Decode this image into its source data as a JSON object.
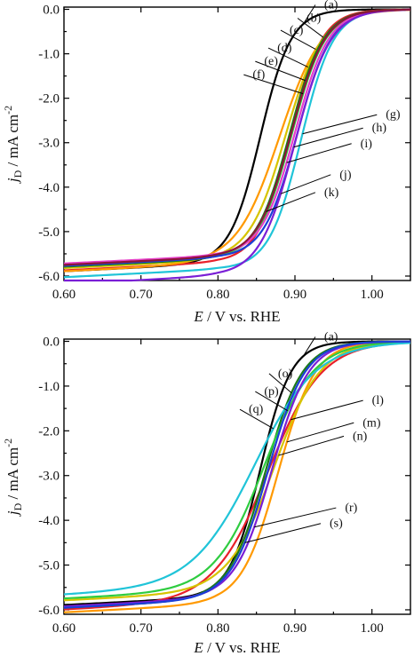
{
  "chart_data": [
    {
      "type": "line",
      "panel": "top",
      "xlabel": "E / V vs. RHE",
      "ylabel": "jD / mA cm-2",
      "xlim": [
        0.6,
        1.05
      ],
      "ylim": [
        -6.1,
        0.05
      ],
      "xticks": [
        "0.60",
        "0.70",
        "0.80",
        "0.90",
        "1.00"
      ],
      "yticks": [
        "0.0",
        "-1.0",
        "-2.0",
        "-3.0",
        "-4.0",
        "-5.0",
        "-6.0"
      ],
      "grid": false,
      "series": [
        {
          "name": "(a)",
          "color": "#000000",
          "e_half": 0.855,
          "jl": -5.72,
          "slope": 0.02
        },
        {
          "name": "(b)",
          "color": "#e8202a",
          "e_half": 0.893,
          "jl": -5.7,
          "slope": 0.021
        },
        {
          "name": "(c)",
          "color": "#ff9900",
          "e_half": 0.88,
          "jl": -5.72,
          "slope": 0.028
        },
        {
          "name": "(d)",
          "color": "#d6c400",
          "e_half": 0.888,
          "jl": -5.65,
          "slope": 0.024
        },
        {
          "name": "(e)",
          "color": "#1b7a1b",
          "e_half": 0.893,
          "jl": -5.62,
          "slope": 0.022
        },
        {
          "name": "(f)",
          "color": "#2ecc40",
          "e_half": 0.896,
          "jl": -5.6,
          "slope": 0.022
        },
        {
          "name": "(g)",
          "color": "#20c4d8",
          "e_half": 0.908,
          "jl": -5.85,
          "slope": 0.021
        },
        {
          "name": "(h)",
          "color": "#1b3fd6",
          "e_half": 0.903,
          "jl": -5.6,
          "slope": 0.022
        },
        {
          "name": "(i)",
          "color": "#e63fc8",
          "e_half": 0.9,
          "jl": -5.55,
          "slope": 0.022
        },
        {
          "name": "(j)",
          "color": "#7a1fd6",
          "e_half": 0.9,
          "jl": -6.0,
          "slope": 0.023
        },
        {
          "name": "(k)",
          "color": "#8b1538",
          "e_half": 0.895,
          "jl": -5.58,
          "slope": 0.022
        }
      ],
      "labels": [
        {
          "text": "(a)",
          "x": 0.938,
          "y": 0.02
        },
        {
          "text": "(b)",
          "x": 0.915,
          "y": -0.28
        },
        {
          "text": "(c)",
          "x": 0.893,
          "y": -0.55
        },
        {
          "text": "(d)",
          "x": 0.877,
          "y": -0.95
        },
        {
          "text": "(e)",
          "x": 0.86,
          "y": -1.25
        },
        {
          "text": "(f)",
          "x": 0.845,
          "y": -1.55
        },
        {
          "text": "(g)",
          "x": 1.018,
          "y": -2.45
        },
        {
          "text": "(h)",
          "x": 1.0,
          "y": -2.75
        },
        {
          "text": "(i)",
          "x": 0.985,
          "y": -3.1
        },
        {
          "text": "(j)",
          "x": 0.958,
          "y": -3.8
        },
        {
          "text": "(k)",
          "x": 0.938,
          "y": -4.2
        }
      ]
    },
    {
      "type": "line",
      "panel": "bottom",
      "xlabel": "E / V vs. RHE",
      "ylabel": "jD / mA cm-2",
      "xlim": [
        0.6,
        1.05
      ],
      "ylim": [
        -6.1,
        0.05
      ],
      "xticks": [
        "0.60",
        "0.70",
        "0.80",
        "0.90",
        "1.00"
      ],
      "yticks": [
        "0.0",
        "-1.0",
        "-2.0",
        "-3.0",
        "-4.0",
        "-5.0",
        "-6.0"
      ],
      "grid": false,
      "series": [
        {
          "name": "(a)",
          "color": "#000000",
          "e_half": 0.855,
          "jl": -5.72,
          "slope": 0.02
        },
        {
          "name": "(l)",
          "color": "#e8202a",
          "e_half": 0.865,
          "jl": -5.82,
          "slope": 0.035
        },
        {
          "name": "(m)",
          "color": "#ff9900",
          "e_half": 0.878,
          "jl": -5.88,
          "slope": 0.024
        },
        {
          "name": "(n)",
          "color": "#d6c400",
          "e_half": 0.873,
          "jl": -5.62,
          "slope": 0.03
        },
        {
          "name": "(o)",
          "color": "#1b7a1b",
          "e_half": 0.862,
          "jl": -5.78,
          "slope": 0.024
        },
        {
          "name": "(p)",
          "color": "#2ecc40",
          "e_half": 0.86,
          "jl": -5.58,
          "slope": 0.032
        },
        {
          "name": "(q)",
          "color": "#20c4d8",
          "e_half": 0.848,
          "jl": -5.5,
          "slope": 0.04
        },
        {
          "name": "(r)",
          "color": "#7a1fd6",
          "e_half": 0.87,
          "jl": -5.75,
          "slope": 0.024
        },
        {
          "name": "(s)",
          "color": "#1b3fd6",
          "e_half": 0.865,
          "jl": -5.78,
          "slope": 0.024
        }
      ],
      "labels": [
        {
          "text": "(a)",
          "x": 0.938,
          "y": 0.02
        },
        {
          "text": "(l)",
          "x": 1.0,
          "y": -1.4
        },
        {
          "text": "(m)",
          "x": 0.988,
          "y": -1.9
        },
        {
          "text": "(n)",
          "x": 0.975,
          "y": -2.2
        },
        {
          "text": "(o)",
          "x": 0.878,
          "y": -0.8
        },
        {
          "text": "(p)",
          "x": 0.86,
          "y": -1.2
        },
        {
          "text": "(q)",
          "x": 0.84,
          "y": -1.6
        },
        {
          "text": "(r)",
          "x": 0.965,
          "y": -3.8
        },
        {
          "text": "(s)",
          "x": 0.945,
          "y": -4.15
        }
      ]
    }
  ]
}
